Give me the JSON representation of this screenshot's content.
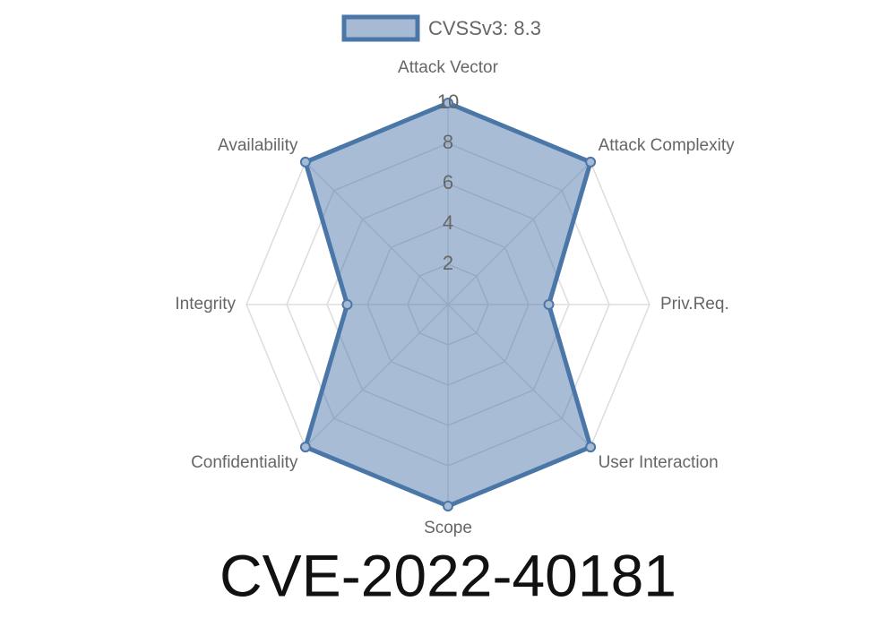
{
  "chart_data": {
    "type": "radar",
    "title": "CVE-2022-40181",
    "categories": [
      "Attack Vector",
      "Attack Complexity",
      "Priv.Req.",
      "User Interaction",
      "Scope",
      "Confidentiality",
      "Integrity",
      "Availability"
    ],
    "series": [
      {
        "name": "CVSSv3: 8.3",
        "color": "#4a76a8",
        "values": [
          10,
          10,
          5,
          10,
          10,
          10,
          5,
          10
        ]
      }
    ],
    "rlim": [
      0,
      10
    ],
    "rticks": [
      2,
      4,
      6,
      8,
      10
    ],
    "grid": true,
    "legend": "top"
  }
}
